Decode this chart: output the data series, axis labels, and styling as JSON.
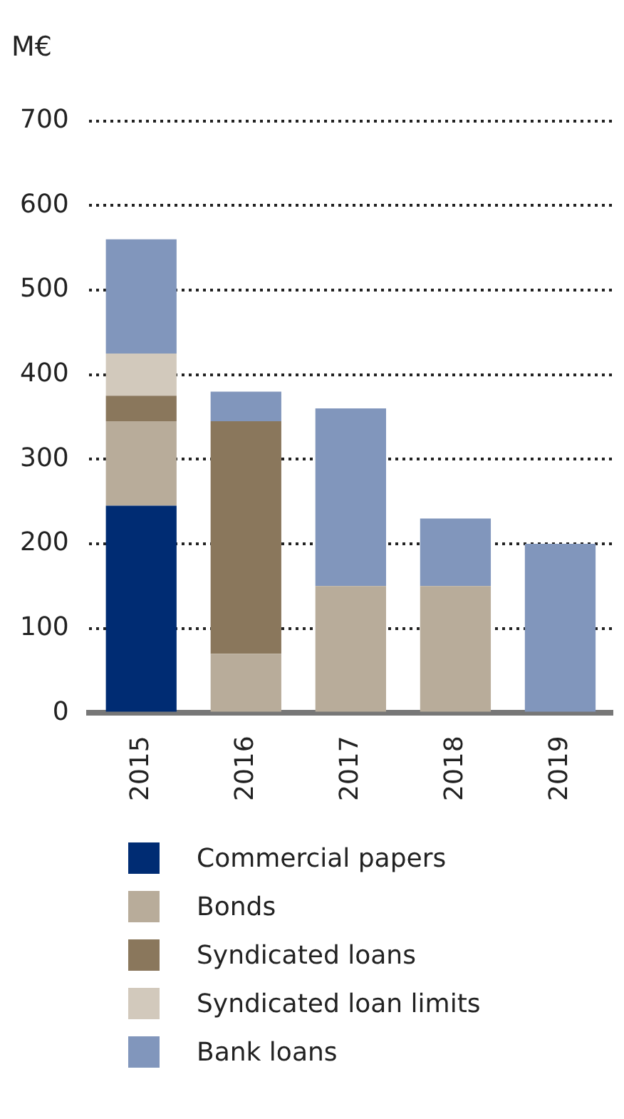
{
  "chart_data": {
    "type": "bar",
    "ylabel": "M€",
    "categories": [
      "2015",
      "2016",
      "2017",
      "2018",
      "2019"
    ],
    "stacked": true,
    "series": [
      {
        "name": "Commercial papers",
        "color": "#002c73",
        "values": [
          245,
          null,
          null,
          null,
          null
        ]
      },
      {
        "name": "Bonds",
        "color": "#b8ac9a",
        "values": [
          100,
          70,
          150,
          150,
          null
        ]
      },
      {
        "name": "Syndicated loans",
        "color": "#8a775c",
        "values": [
          30,
          275,
          null,
          null,
          null
        ]
      },
      {
        "name": "Syndicated loan limits",
        "color": "#d2c9bc",
        "values": [
          50,
          null,
          null,
          null,
          null
        ]
      },
      {
        "name": "Bank loans",
        "color": "#8196bc",
        "values": [
          135,
          35,
          210,
          80,
          200
        ]
      }
    ],
    "ylim": [
      0,
      700
    ],
    "yticks": [
      0,
      100,
      200,
      300,
      400,
      500,
      600,
      700
    ],
    "grid": "y",
    "legend": "bottom"
  }
}
